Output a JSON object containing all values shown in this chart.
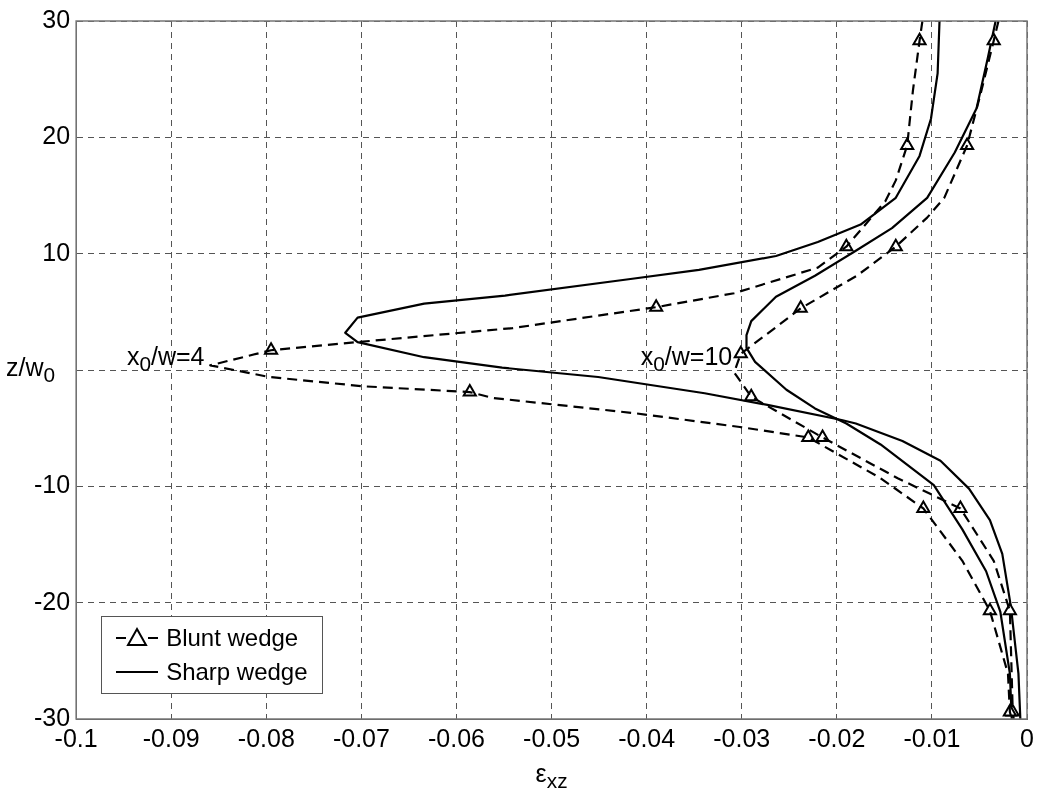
{
  "chart_data": {
    "type": "line",
    "xlabel": "ε$_{xz}$",
    "ylabel": "z/w$_{0}$",
    "xlim": [
      -0.1,
      0
    ],
    "xticks": [
      -0.1,
      -0.09,
      -0.08,
      -0.07,
      -0.06,
      -0.05,
      -0.04,
      -0.03,
      -0.02,
      -0.01,
      0
    ],
    "ylim": [
      -30,
      30
    ],
    "yticks": [
      -30,
      -20,
      -10,
      {
        "value": 0,
        "label": null
      },
      10,
      20,
      30
    ],
    "grid": true,
    "legend": "bottom left",
    "annotations": [
      "x$_{0}$/w=4",
      "x$_{0}$/w=10"
    ],
    "series": [
      {
        "name": "Blunt wedge",
        "line_style": "dashed",
        "marker": "none",
        "color": "#000000",
        "x": [
          -0.011,
          -0.0113,
          -0.012,
          -0.0126,
          -0.0138,
          -0.0149,
          -0.019,
          -0.022,
          -0.0308,
          -0.039,
          -0.0541,
          -0.0704,
          -0.0795,
          -0.0859,
          -0.0797,
          -0.0698,
          -0.0586,
          -0.0562,
          -0.0414,
          -0.0302,
          -0.023,
          -0.0154,
          -0.0109,
          -0.0068,
          -0.0039,
          -0.002,
          -0.0018,
          -0.0016
        ],
        "values": [
          30,
          28.3,
          24,
          19.3,
          16.3,
          14.5,
          10.6,
          8.8,
          6.6,
          5.4,
          3.6,
          2.4,
          1.7,
          0.4,
          -0.6,
          -1.4,
          -1.9,
          -2.4,
          -3.7,
          -4.9,
          -5.8,
          -9.3,
          -11.9,
          -16.4,
          -20.7,
          -26.1,
          -29.4,
          -30
        ]
      },
      {
        "type": "scatter",
        "marker": "triangle",
        "color": "#000000",
        "x": [
          -0.0113,
          -0.0126,
          -0.019,
          -0.039,
          -0.0795,
          -0.0586,
          -0.023,
          -0.0109,
          -0.0039,
          -0.0018
        ],
        "values": [
          28.3,
          19.3,
          10.6,
          5.4,
          1.7,
          -1.9,
          -5.8,
          -11.9,
          -20.7,
          -29.4
        ]
      },
      {
        "line_style": "dashed",
        "marker": "none",
        "color": "#000000",
        "x": [
          -0.003,
          -0.0035,
          -0.0048,
          -0.0063,
          -0.0087,
          -0.0105,
          -0.0138,
          -0.0179,
          -0.0238,
          -0.0275,
          -0.0301,
          -0.0308,
          -0.029,
          -0.0215,
          -0.0136,
          -0.007,
          -0.0035,
          -0.0018,
          -0.0015,
          -0.0014
        ],
        "values": [
          30,
          28.3,
          24,
          19.3,
          14.8,
          13.1,
          10.6,
          8.1,
          5.3,
          3.0,
          1.4,
          -0.2,
          -2.3,
          -5.8,
          -9.3,
          -11.9,
          -16.4,
          -20.7,
          -29.4,
          -30
        ]
      },
      {
        "type": "scatter",
        "marker": "triangle",
        "color": "#000000",
        "x": [
          -0.0035,
          -0.0063,
          -0.0138,
          -0.0238,
          -0.0301,
          -0.029,
          -0.0215,
          -0.007,
          -0.0018,
          -0.0015
        ],
        "values": [
          28.3,
          19.3,
          10.6,
          5.3,
          1.4,
          -2.3,
          -5.8,
          -11.9,
          -20.7,
          -29.4
        ]
      },
      {
        "name": "Sharp wedge",
        "line_style": "solid",
        "marker": "none",
        "color": "#000000",
        "x": [
          -0.0092,
          -0.0094,
          -0.0101,
          -0.0113,
          -0.0138,
          -0.0175,
          -0.022,
          -0.0264,
          -0.0345,
          -0.0419,
          -0.0549,
          -0.0634,
          -0.0704,
          -0.0717,
          -0.0704,
          -0.0634,
          -0.0552,
          -0.0451,
          -0.0339,
          -0.0273,
          -0.0195,
          -0.018,
          -0.0131,
          -0.0091,
          -0.0061,
          -0.0039,
          -0.0026,
          -0.0017,
          -0.0009,
          -0.0007
        ],
        "values": [
          30,
          25.5,
          21.6,
          18.4,
          14.8,
          12.5,
          11.0,
          9.8,
          8.6,
          7.8,
          6.4,
          5.7,
          4.5,
          3.2,
          2.4,
          1.1,
          0.2,
          -0.6,
          -2.0,
          -3.0,
          -4.3,
          -4.6,
          -6.1,
          -7.8,
          -10.2,
          -12.9,
          -15.8,
          -20.3,
          -26.1,
          -30
        ]
      },
      {
        "line_style": "solid",
        "marker": "none",
        "color": "#000000",
        "x": [
          -0.0033,
          -0.0041,
          -0.0053,
          -0.0076,
          -0.0105,
          -0.0142,
          -0.0183,
          -0.0223,
          -0.0264,
          -0.029,
          -0.0295,
          -0.0295,
          -0.0286,
          -0.0253,
          -0.0223,
          -0.019,
          -0.0154,
          -0.0098,
          -0.0068,
          -0.0043,
          -0.0028,
          -0.0018,
          -0.0016
        ],
        "values": [
          30,
          26.9,
          22.5,
          18.7,
          14.8,
          12.2,
          10.1,
          8.1,
          6.3,
          4.2,
          3.0,
          1.9,
          0.7,
          -1.7,
          -3.3,
          -4.6,
          -6.4,
          -9.9,
          -13.7,
          -17.3,
          -20.8,
          -26.1,
          -30
        ]
      }
    ]
  }
}
